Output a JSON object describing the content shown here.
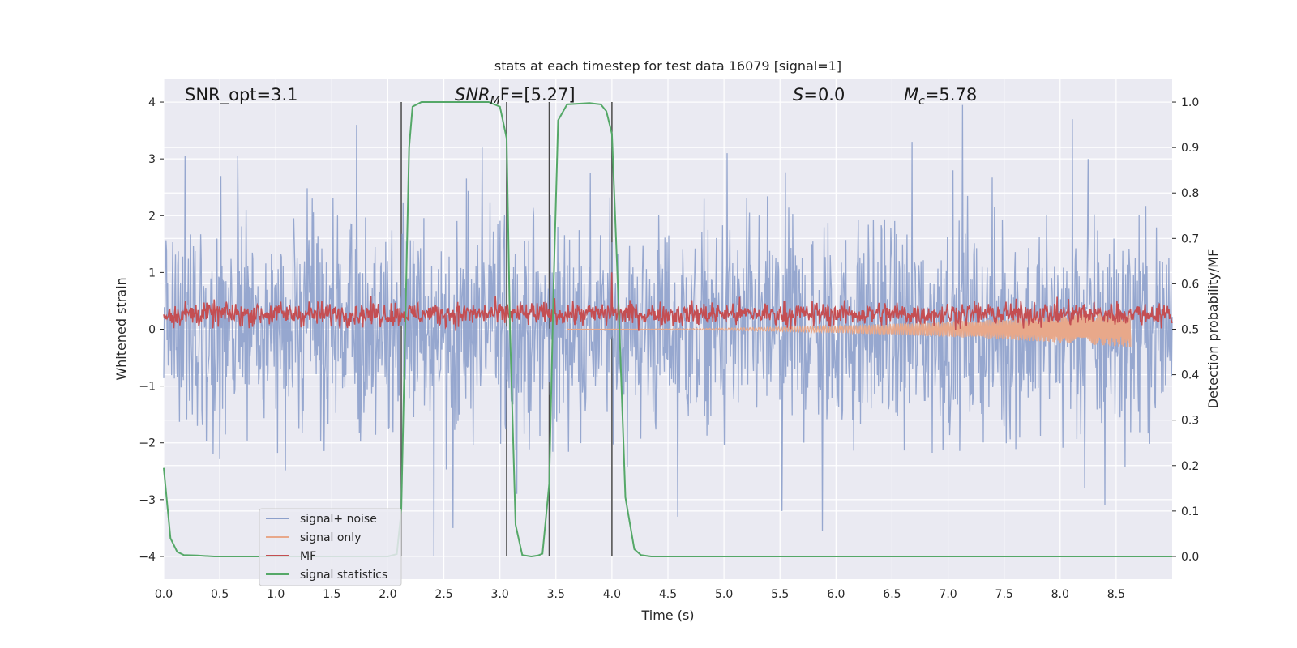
{
  "chart_data": {
    "type": "line",
    "title": "stats at each timestep for test data 16079 [signal=1]",
    "xlabel": "Time (s)",
    "ylabel": "Whitened strain",
    "y2label": "Detection probability/MF",
    "xlim": [
      0.0,
      9.0
    ],
    "ylim": [
      -4.4,
      4.4
    ],
    "y2lim": [
      -0.05,
      1.05
    ],
    "grid": true,
    "legend_position": "lower-left",
    "x_ticks": [
      "0.0",
      "0.5",
      "1.0",
      "1.5",
      "2.0",
      "2.5",
      "3.0",
      "3.5",
      "4.0",
      "4.5",
      "5.0",
      "5.5",
      "6.0",
      "6.5",
      "7.0",
      "7.5",
      "8.0",
      "8.5"
    ],
    "y_ticks": [
      "4",
      "3",
      "2",
      "1",
      "0",
      "−1",
      "−2",
      "−3",
      "−4"
    ],
    "y2_ticks": [
      "1.0",
      "0.9",
      "0.8",
      "0.7",
      "0.6",
      "0.5",
      "0.4",
      "0.3",
      "0.2",
      "0.1",
      "0.0"
    ],
    "annotations": {
      "snr_opt": "SNR_opt=3.1",
      "snr_mf_main": "SNR",
      "snr_mf_sub": "M",
      "snr_mf_rest": "F=[5.27]",
      "s_main": "S",
      "s_rest": "=0.0",
      "mc_main": "M",
      "mc_sub": "c",
      "mc_rest": "=5.78"
    },
    "vertical_lines_x": [
      2.12,
      3.06,
      3.44,
      4.0
    ],
    "series": [
      {
        "name": "signal+ noise",
        "color": "#8da0cb",
        "kind": "noise",
        "peaks_pos": [
          [
            0.19,
            3.05
          ],
          [
            0.66,
            3.05
          ],
          [
            0.51,
            2.7
          ],
          [
            1.72,
            3.6
          ],
          [
            2.84,
            3.2
          ],
          [
            5.03,
            3.1
          ],
          [
            6.68,
            3.3
          ],
          [
            7.13,
            3.95
          ],
          [
            8.11,
            3.7
          ],
          [
            8.25,
            3.0
          ]
        ],
        "peaks_neg": [
          [
            2.41,
            -4.0
          ],
          [
            2.58,
            -3.5
          ],
          [
            5.52,
            -3.2
          ],
          [
            5.88,
            -3.55
          ],
          [
            4.59,
            -3.3
          ],
          [
            8.4,
            -3.1
          ],
          [
            8.22,
            -2.8
          ]
        ]
      },
      {
        "name": "signal only",
        "color": "#e8a88a",
        "kind": "chirp",
        "t_start": 3.6,
        "t_end": 8.63,
        "amp_end": 0.32
      },
      {
        "name": "MF",
        "color": "#c44e52",
        "kind": "mf",
        "center": 0.27,
        "spread": 0.17,
        "spike": [
          4.0,
          1.0
        ]
      },
      {
        "name": "signal statistics",
        "color": "#55a868",
        "kind": "prob",
        "x": [
          0.0,
          0.06,
          0.12,
          0.18,
          0.3,
          0.45,
          0.6,
          0.8,
          1.0,
          1.5,
          2.0,
          2.08,
          2.12,
          2.15,
          2.19,
          2.22,
          2.3,
          2.6,
          2.9,
          3.0,
          3.06,
          3.09,
          3.14,
          3.2,
          3.28,
          3.34,
          3.38,
          3.44,
          3.48,
          3.52,
          3.6,
          3.8,
          3.9,
          3.95,
          4.0,
          4.06,
          4.12,
          4.2,
          4.26,
          4.35,
          5.0,
          6.0,
          7.0,
          8.0,
          9.0
        ],
        "y": [
          0.195,
          0.04,
          0.01,
          0.003,
          0.002,
          0.0,
          0.0,
          0.0,
          0.0,
          0.0,
          0.0,
          0.005,
          0.1,
          0.45,
          0.9,
          0.99,
          1.0,
          1.0,
          1.0,
          0.99,
          0.92,
          0.5,
          0.07,
          0.003,
          0.0,
          0.002,
          0.006,
          0.16,
          0.6,
          0.96,
          0.995,
          0.998,
          0.995,
          0.98,
          0.93,
          0.55,
          0.13,
          0.016,
          0.003,
          0.0,
          0.0,
          0.0,
          0.0,
          0.0,
          0.0
        ]
      }
    ]
  }
}
